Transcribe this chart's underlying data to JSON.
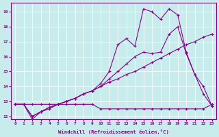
{
  "xlabel": "Windchill (Refroidissement éolien,°C)",
  "background_color": "#c8ecec",
  "line_color": "#880088",
  "x_values": [
    0,
    1,
    2,
    3,
    4,
    5,
    6,
    7,
    8,
    9,
    10,
    11,
    12,
    13,
    14,
    15,
    16,
    17,
    18,
    19,
    20,
    21,
    22,
    23
  ],
  "series_flat": [
    12.8,
    12.8,
    12.8,
    12.8,
    12.8,
    12.8,
    12.8,
    12.8,
    12.8,
    12.8,
    12.5,
    12.5,
    12.5,
    12.5,
    12.5,
    12.5,
    12.5,
    12.5,
    12.5,
    12.5,
    12.5,
    12.5,
    12.5,
    12.8
  ],
  "series_diag": [
    12.8,
    12.8,
    12.0,
    12.3,
    12.6,
    12.8,
    13.0,
    13.2,
    13.5,
    13.7,
    14.0,
    14.3,
    14.5,
    14.8,
    15.0,
    15.3,
    15.6,
    15.9,
    16.2,
    16.5,
    16.8,
    17.0,
    17.3,
    17.5
  ],
  "series_mid": [
    12.8,
    12.8,
    12.0,
    12.3,
    12.6,
    12.8,
    13.0,
    13.2,
    13.5,
    13.7,
    14.0,
    14.5,
    15.0,
    15.5,
    16.0,
    16.3,
    16.2,
    16.3,
    17.5,
    18.0,
    16.2,
    14.8,
    14.0,
    12.7
  ],
  "series_high": [
    12.8,
    12.8,
    11.8,
    12.3,
    12.5,
    12.8,
    13.0,
    13.2,
    13.5,
    13.7,
    14.2,
    15.0,
    16.8,
    17.2,
    16.7,
    19.2,
    19.0,
    18.5,
    19.2,
    18.8,
    16.3,
    14.8,
    13.5,
    12.7
  ],
  "ylim": [
    11.8,
    19.6
  ],
  "yticks": [
    12,
    13,
    14,
    15,
    16,
    17,
    18,
    19
  ],
  "xlim": [
    -0.5,
    23.5
  ],
  "xticks": [
    0,
    1,
    2,
    3,
    4,
    5,
    6,
    7,
    8,
    9,
    10,
    11,
    12,
    13,
    14,
    15,
    16,
    17,
    18,
    19,
    20,
    21,
    22,
    23
  ]
}
